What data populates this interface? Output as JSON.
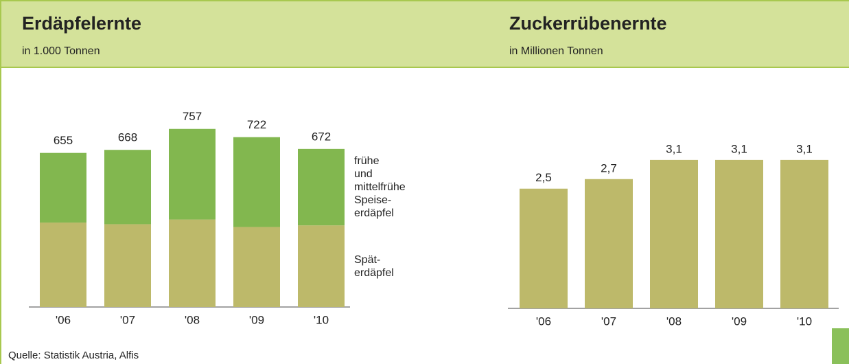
{
  "chart_data": [
    {
      "type": "stacked_bar",
      "title": "Erdäpfelernte",
      "subtitle": "in 1.000 Tonnen",
      "categories": [
        "'06",
        "'07",
        "'08",
        "'09",
        "'10"
      ],
      "series": [
        {
          "name": "Spät-\nerdäpfel",
          "color": "#bdb96a",
          "values": [
            359,
            352,
            372,
            340,
            347
          ]
        },
        {
          "name": "frühe\nund\nmittelfrühe\nSpeise-\nerdäpfel",
          "color": "#82b74f",
          "values": [
            296,
            316,
            385,
            382,
            325
          ]
        }
      ],
      "totals": [
        655,
        668,
        757,
        722,
        672
      ],
      "ylim": [
        0,
        800
      ]
    },
    {
      "type": "bar",
      "title": "Zuckerrübenernte",
      "subtitle": "in Millionen Tonnen",
      "categories": [
        "'06",
        "'07",
        "'08",
        "'09",
        "'10"
      ],
      "values": [
        2.5,
        2.7,
        3.1,
        3.1,
        3.1
      ],
      "value_labels": [
        "2,5",
        "2,7",
        "3,1",
        "3,1",
        "3,1"
      ],
      "color": "#bdb96a",
      "ylim": [
        0,
        3.5
      ]
    }
  ],
  "source": "Quelle: Statistik Austria, Alfis"
}
